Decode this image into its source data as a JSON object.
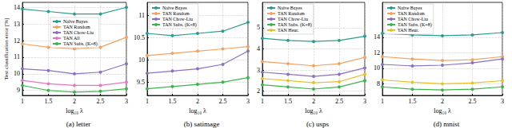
{
  "chart_data": [
    {
      "type": "line",
      "title": "(a) letter",
      "x_label": "log₁₀ λ",
      "y_label": "Test classification error [%]",
      "x": [
        1,
        1.5,
        2,
        2.5,
        3
      ],
      "xlim": [
        1,
        3
      ],
      "xticks": [
        1,
        1.5,
        2,
        2.5,
        3
      ],
      "ylim": [
        8.7,
        14.3
      ],
      "yticks": [
        9,
        10,
        11,
        12,
        13,
        14
      ],
      "grid": true,
      "legend": "top",
      "series": [
        {
          "name": "Naïve Bayes",
          "color": "#2a9d8f",
          "marker": "circle",
          "values": [
            13.9,
            13.75,
            13.6,
            13.6,
            14.0
          ]
        },
        {
          "name": "TAN Random",
          "color": "#f4a261",
          "marker": "circle",
          "values": [
            11.8,
            11.6,
            11.5,
            11.6,
            12.2
          ]
        },
        {
          "name": "TAN Chow-Liu",
          "color": "#8e6fc1",
          "marker": "circle",
          "values": [
            10.3,
            10.2,
            10.0,
            10.1,
            10.6
          ]
        },
        {
          "name": "TAN All",
          "color": "#e377c2",
          "marker": "circle",
          "values": [
            9.6,
            9.4,
            9.3,
            9.3,
            9.5
          ]
        },
        {
          "name": "TAN Subs. (K=8)",
          "color": "#3cb44b",
          "marker": "circle",
          "values": [
            9.3,
            9.0,
            8.9,
            8.95,
            9.1
          ]
        }
      ]
    },
    {
      "type": "line",
      "title": "(b) satimage",
      "x_label": "log₁₀ λ",
      "x": [
        1,
        1.5,
        2,
        2.5,
        3
      ],
      "xlim": [
        1,
        3
      ],
      "xticks": [
        1,
        1.5,
        2,
        2.5,
        3
      ],
      "ylim": [
        9.2,
        11.3
      ],
      "yticks": [
        9.5,
        10,
        10.5,
        11
      ],
      "grid": true,
      "legend": "top-left",
      "series": [
        {
          "name": "Naïve Bayes",
          "color": "#2a9d8f",
          "marker": "circle",
          "values": [
            10.6,
            10.55,
            10.6,
            10.65,
            10.85
          ]
        },
        {
          "name": "TAN Random",
          "color": "#f4a261",
          "marker": "circle",
          "values": [
            10.1,
            10.15,
            10.2,
            10.25,
            10.3
          ]
        },
        {
          "name": "TAN Chow-Liu",
          "color": "#8e6fc1",
          "marker": "circle",
          "values": [
            9.7,
            9.75,
            9.8,
            9.9,
            10.2
          ]
        },
        {
          "name": "TAN Subs. (K=8)",
          "color": "#3cb44b",
          "marker": "circle",
          "values": [
            9.35,
            9.4,
            9.45,
            9.5,
            9.6
          ]
        }
      ]
    },
    {
      "type": "line",
      "title": "(c) usps",
      "x_label": "log₁₀ λ",
      "x": [
        1,
        1.5,
        2,
        2.5,
        3
      ],
      "xlim": [
        1,
        3
      ],
      "xticks": [
        1,
        1.5,
        2,
        2.5,
        3
      ],
      "ylim": [
        1.8,
        6.2
      ],
      "yticks": [
        2,
        3,
        4,
        5
      ],
      "grid": true,
      "legend": "top-left",
      "series": [
        {
          "name": "Naïve Bayes",
          "color": "#2a9d8f",
          "marker": "circle",
          "values": [
            4.5,
            4.4,
            4.35,
            4.4,
            4.6
          ]
        },
        {
          "name": "TAN Random",
          "color": "#f4a261",
          "marker": "circle",
          "values": [
            3.4,
            3.3,
            3.2,
            3.3,
            3.6
          ]
        },
        {
          "name": "TAN Chow-Liu",
          "color": "#8e6fc1",
          "marker": "circle",
          "values": [
            2.9,
            2.8,
            2.7,
            2.8,
            3.1
          ]
        },
        {
          "name": "TAN Subs. (K=8)",
          "color": "#3cb44b",
          "marker": "circle",
          "values": [
            2.3,
            2.2,
            2.1,
            2.2,
            2.5
          ]
        },
        {
          "name": "TAN Heur.",
          "color": "#e6c229",
          "marker": "circle",
          "values": [
            2.6,
            2.5,
            2.4,
            2.45,
            2.8
          ]
        }
      ]
    },
    {
      "type": "line",
      "title": "(d) mnist",
      "x_label": "log₁₀ λ",
      "x": [
        1,
        1.5,
        2,
        2.5,
        3
      ],
      "xlim": [
        1,
        3
      ],
      "xticks": [
        1,
        1.5,
        2,
        2.5,
        3
      ],
      "ylim": [
        6.5,
        18.5
      ],
      "yticks": [
        8,
        10,
        12,
        14
      ],
      "grid": true,
      "legend": "top-left",
      "series": [
        {
          "name": "Naïve Bayes",
          "color": "#2a9d8f",
          "marker": "circle",
          "values": [
            14.5,
            14.3,
            14.2,
            14.3,
            14.6
          ]
        },
        {
          "name": "TAN Random",
          "color": "#f4a261",
          "marker": "circle",
          "values": [
            11.5,
            11.2,
            11.0,
            11.1,
            11.5
          ]
        },
        {
          "name": "TAN Chow-Liu",
          "color": "#8e6fc1",
          "marker": "circle",
          "values": [
            10.5,
            10.3,
            10.4,
            10.7,
            11.2
          ]
        },
        {
          "name": "TAN Subs. (K=8)",
          "color": "#3cb44b",
          "marker": "circle",
          "values": [
            7.6,
            7.3,
            7.2,
            7.3,
            7.6
          ]
        },
        {
          "name": "TAN Heur.",
          "color": "#e6c229",
          "marker": "circle",
          "values": [
            8.5,
            8.2,
            8.0,
            8.1,
            8.4
          ]
        }
      ]
    }
  ]
}
